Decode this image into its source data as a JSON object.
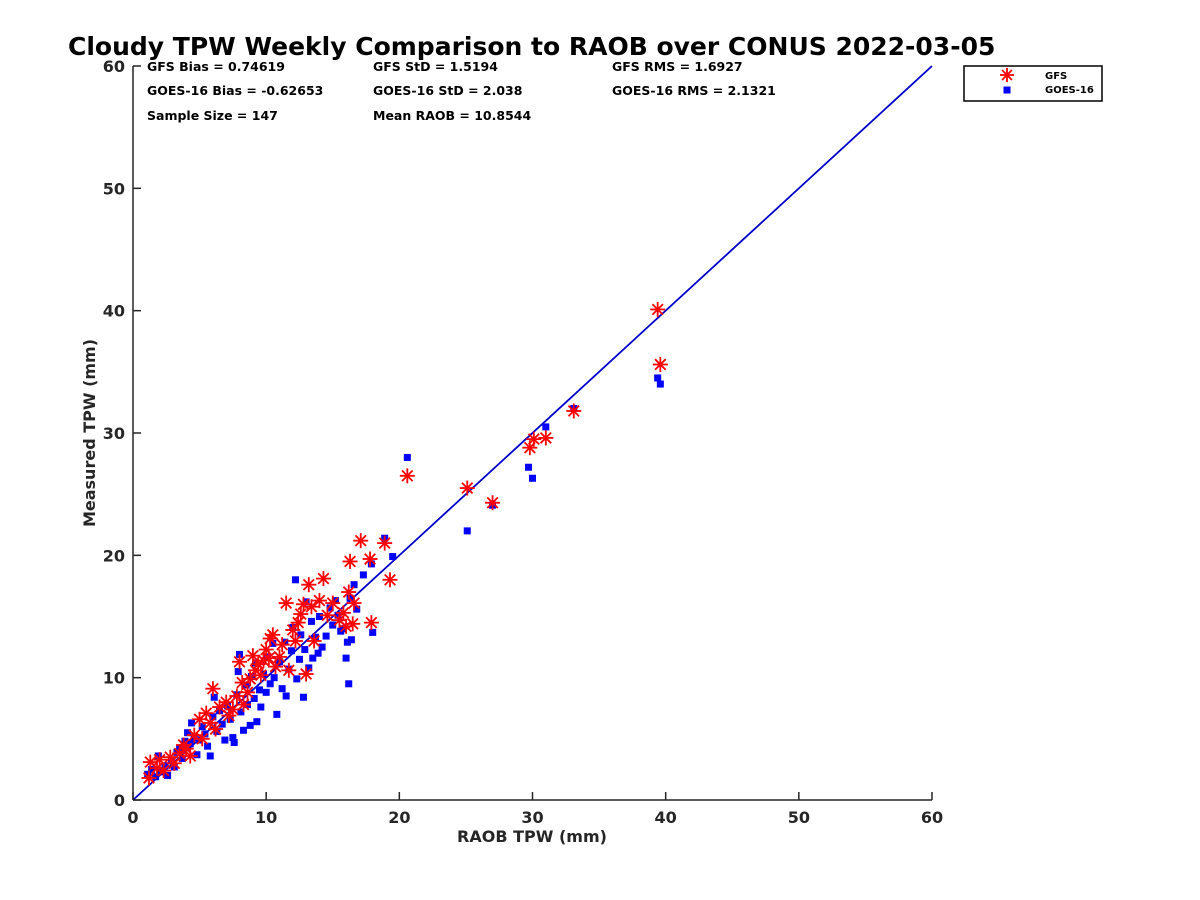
{
  "chart_data": {
    "type": "scatter",
    "title": "Cloudy TPW Weekly Comparison to RAOB over CONUS 2022-03-05",
    "xlabel": "RAOB TPW (mm)",
    "ylabel": "Measured TPW (mm)",
    "xlim": [
      0,
      60
    ],
    "ylim": [
      0,
      60
    ],
    "xticks": [
      "0",
      "10",
      "20",
      "30",
      "40",
      "50",
      "60"
    ],
    "yticks": [
      "0",
      "10",
      "20",
      "30",
      "40",
      "50",
      "60"
    ],
    "grid": false,
    "legend_position": "top-right",
    "one_to_one_line": true,
    "line_color": "#0000cc",
    "stats": {
      "gfs_bias": "GFS Bias = 0.74619",
      "gfs_std": "GFS StD = 1.5194",
      "gfs_rms": "GFS RMS = 1.6927",
      "goes_bias": "GOES-16 Bias = -0.62653",
      "goes_std": "GOES-16 StD = 2.038",
      "goes_rms": "GOES-16 RMS = 2.1321",
      "sample_size": "Sample Size = 147",
      "mean_raob": "Mean RAOB = 10.8544"
    },
    "series": [
      {
        "name": "GFS",
        "marker": "asterisk",
        "color": "#ff0000",
        "points": [
          [
            1.2,
            1.8
          ],
          [
            1.3,
            3.1
          ],
          [
            1.8,
            2.6
          ],
          [
            2.0,
            3.3
          ],
          [
            2.3,
            2.4
          ],
          [
            2.8,
            3.5
          ],
          [
            3.1,
            3.0
          ],
          [
            3.5,
            3.8
          ],
          [
            3.8,
            4.5
          ],
          [
            4.0,
            4.2
          ],
          [
            4.3,
            3.6
          ],
          [
            4.6,
            5.3
          ],
          [
            5.0,
            6.6
          ],
          [
            5.2,
            5.0
          ],
          [
            5.5,
            7.1
          ],
          [
            5.8,
            6.3
          ],
          [
            6.0,
            9.1
          ],
          [
            6.2,
            5.8
          ],
          [
            6.5,
            7.6
          ],
          [
            7.0,
            8.0
          ],
          [
            7.2,
            6.9
          ],
          [
            7.5,
            7.4
          ],
          [
            7.8,
            8.5
          ],
          [
            8.0,
            11.3
          ],
          [
            8.2,
            9.6
          ],
          [
            8.3,
            7.8
          ],
          [
            8.6,
            8.8
          ],
          [
            8.8,
            9.9
          ],
          [
            9.0,
            11.8
          ],
          [
            9.2,
            10.6
          ],
          [
            9.4,
            11.1
          ],
          [
            9.6,
            10.2
          ],
          [
            9.8,
            11.4
          ],
          [
            10.0,
            12.3
          ],
          [
            10.2,
            11.6
          ],
          [
            10.3,
            13.2
          ],
          [
            10.5,
            13.5
          ],
          [
            10.7,
            10.9
          ],
          [
            11.0,
            11.7
          ],
          [
            11.2,
            12.7
          ],
          [
            11.5,
            16.1
          ],
          [
            11.7,
            10.6
          ],
          [
            12.0,
            13.9
          ],
          [
            12.2,
            13.0
          ],
          [
            12.4,
            14.5
          ],
          [
            12.6,
            15.2
          ],
          [
            12.8,
            16.0
          ],
          [
            13.0,
            10.3
          ],
          [
            13.2,
            17.6
          ],
          [
            13.4,
            15.8
          ],
          [
            13.6,
            13.0
          ],
          [
            14.0,
            16.3
          ],
          [
            14.3,
            18.1
          ],
          [
            14.6,
            15.1
          ],
          [
            15.0,
            16.1
          ],
          [
            15.5,
            14.7
          ],
          [
            15.8,
            15.3
          ],
          [
            16.0,
            14.2
          ],
          [
            16.2,
            17.0
          ],
          [
            16.3,
            19.5
          ],
          [
            16.5,
            14.4
          ],
          [
            16.6,
            16.1
          ],
          [
            17.1,
            21.2
          ],
          [
            17.8,
            19.7
          ],
          [
            17.9,
            14.5
          ],
          [
            18.9,
            21.0
          ],
          [
            19.3,
            18.0
          ],
          [
            20.6,
            26.5
          ],
          [
            25.1,
            25.5
          ],
          [
            27.0,
            24.3
          ],
          [
            29.8,
            28.8
          ],
          [
            30.1,
            29.5
          ],
          [
            31.0,
            29.6
          ],
          [
            33.1,
            31.8
          ],
          [
            39.4,
            40.1
          ],
          [
            39.6,
            35.6
          ]
        ]
      },
      {
        "name": "GOES-16",
        "marker": "square",
        "color": "#0000ff",
        "points": [
          [
            1.1,
            2.1
          ],
          [
            1.4,
            2.5
          ],
          [
            1.7,
            1.9
          ],
          [
            1.9,
            3.6
          ],
          [
            2.1,
            2.3
          ],
          [
            2.4,
            2.8
          ],
          [
            2.6,
            2.0
          ],
          [
            2.9,
            3.2
          ],
          [
            3.1,
            2.7
          ],
          [
            3.3,
            3.9
          ],
          [
            3.5,
            4.2
          ],
          [
            3.7,
            3.4
          ],
          [
            3.9,
            4.8
          ],
          [
            4.1,
            5.5
          ],
          [
            4.3,
            4.6
          ],
          [
            4.4,
            6.3
          ],
          [
            4.6,
            5.1
          ],
          [
            4.8,
            3.7
          ],
          [
            5.0,
            4.9
          ],
          [
            5.2,
            6.0
          ],
          [
            5.4,
            5.4
          ],
          [
            5.6,
            4.4
          ],
          [
            5.8,
            3.6
          ],
          [
            6.0,
            6.8
          ],
          [
            6.1,
            8.4
          ],
          [
            6.3,
            5.6
          ],
          [
            6.5,
            7.3
          ],
          [
            6.7,
            6.2
          ],
          [
            6.9,
            4.9
          ],
          [
            7.1,
            7.7
          ],
          [
            7.3,
            6.6
          ],
          [
            7.5,
            5.1
          ],
          [
            7.6,
            4.7
          ],
          [
            7.8,
            8.6
          ],
          [
            7.9,
            10.5
          ],
          [
            8.0,
            11.9
          ],
          [
            8.1,
            7.2
          ],
          [
            8.3,
            5.7
          ],
          [
            8.5,
            9.4
          ],
          [
            8.6,
            7.8
          ],
          [
            8.8,
            6.1
          ],
          [
            8.9,
            10.1
          ],
          [
            9.1,
            8.3
          ],
          [
            9.2,
            11.2
          ],
          [
            9.3,
            6.4
          ],
          [
            9.5,
            9.0
          ],
          [
            9.6,
            7.6
          ],
          [
            9.8,
            10.3
          ],
          [
            10.0,
            8.8
          ],
          [
            10.1,
            11.7
          ],
          [
            10.3,
            9.5
          ],
          [
            10.5,
            12.8
          ],
          [
            10.6,
            10.0
          ],
          [
            10.8,
            7.0
          ],
          [
            11.0,
            11.3
          ],
          [
            11.2,
            9.1
          ],
          [
            11.4,
            12.9
          ],
          [
            11.5,
            8.5
          ],
          [
            11.7,
            10.7
          ],
          [
            11.9,
            12.2
          ],
          [
            12.0,
            14.1
          ],
          [
            12.2,
            18.0
          ],
          [
            12.3,
            9.9
          ],
          [
            12.5,
            11.5
          ],
          [
            12.6,
            13.5
          ],
          [
            12.8,
            8.4
          ],
          [
            12.9,
            12.3
          ],
          [
            13.0,
            16.2
          ],
          [
            13.2,
            10.8
          ],
          [
            13.4,
            14.6
          ],
          [
            13.5,
            11.6
          ],
          [
            13.7,
            13.3
          ],
          [
            13.9,
            12.0
          ],
          [
            14.0,
            15.0
          ],
          [
            14.2,
            12.5
          ],
          [
            14.5,
            13.4
          ],
          [
            14.8,
            15.7
          ],
          [
            15.0,
            14.3
          ],
          [
            15.2,
            16.3
          ],
          [
            15.4,
            15.1
          ],
          [
            15.6,
            13.8
          ],
          [
            15.8,
            14.0
          ],
          [
            16.0,
            11.6
          ],
          [
            16.1,
            12.9
          ],
          [
            16.2,
            9.5
          ],
          [
            16.3,
            16.5
          ],
          [
            16.4,
            13.1
          ],
          [
            16.6,
            17.6
          ],
          [
            16.8,
            15.6
          ],
          [
            17.3,
            18.4
          ],
          [
            17.9,
            19.3
          ],
          [
            18.0,
            13.7
          ],
          [
            18.9,
            21.4
          ],
          [
            19.5,
            19.9
          ],
          [
            20.6,
            28.0
          ],
          [
            25.1,
            22.0
          ],
          [
            27.0,
            24.1
          ],
          [
            29.7,
            27.2
          ],
          [
            30.0,
            26.3
          ],
          [
            31.0,
            30.5
          ],
          [
            33.1,
            32.0
          ],
          [
            39.4,
            34.5
          ],
          [
            39.6,
            34.0
          ]
        ]
      }
    ]
  }
}
